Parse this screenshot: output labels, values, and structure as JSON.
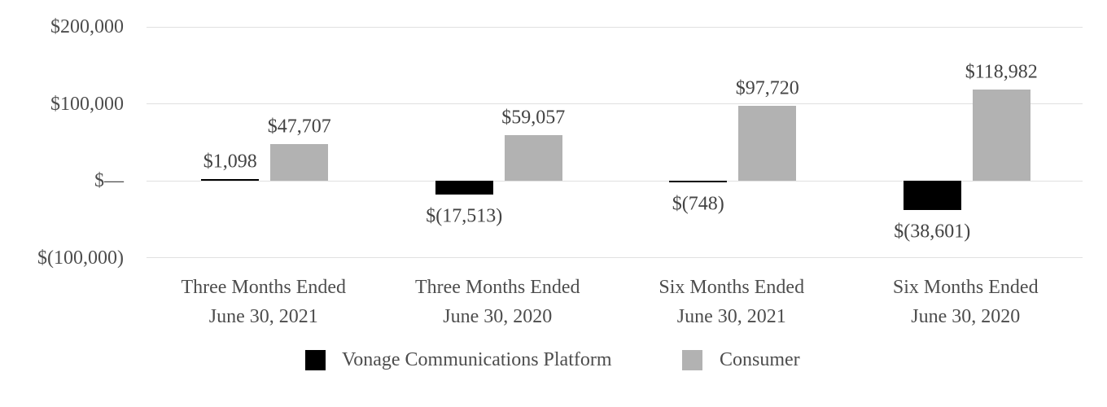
{
  "chart_data": {
    "type": "bar",
    "title": "",
    "categories": [
      {
        "line1": "Three Months Ended",
        "line2": "June 30, 2021"
      },
      {
        "line1": "Three Months Ended",
        "line2": "June 30, 2020"
      },
      {
        "line1": "Six Months Ended",
        "line2": "June 30, 2021"
      },
      {
        "line1": "Six Months Ended",
        "line2": "June 30, 2020"
      }
    ],
    "series": [
      {
        "name": "Vonage Communications Platform",
        "color": "#000000",
        "values": [
          1098,
          -17513,
          -748,
          -38601
        ],
        "labels": [
          "$1,098",
          "$(17,513)",
          "$(748)",
          "$(38,601)"
        ]
      },
      {
        "name": "Consumer",
        "color": "#b2b2b2",
        "values": [
          47707,
          59057,
          97720,
          118982
        ],
        "labels": [
          "$47,707",
          "$59,057",
          "$97,720",
          "$118,982"
        ]
      }
    ],
    "y_axis": {
      "min": -100000,
      "max": 200000,
      "ticks": [
        {
          "value": 200000,
          "label": "$200,000"
        },
        {
          "value": 100000,
          "label": "$100,000"
        },
        {
          "value": 0,
          "label": "$—"
        },
        {
          "value": -100000,
          "label": "$(100,000)"
        }
      ]
    },
    "grid": true,
    "legend_position": "bottom"
  },
  "colors": {
    "background": "#ffffff",
    "gridline": "#e0e0e0",
    "axis_text": "#4d4d4d",
    "value_label_text": "#434343",
    "bar_black": "#000000",
    "bar_gray": "#b2b2b2"
  }
}
